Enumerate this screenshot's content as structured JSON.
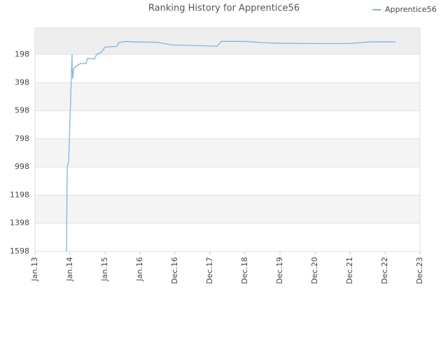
{
  "chart_data": {
    "type": "line",
    "title": "Ranking History for Apprentice56",
    "xlim": [
      0,
      11
    ],
    "xticks": [
      {
        "value": 0,
        "label": "Jan.13"
      },
      {
        "value": 1,
        "label": "Jan.14"
      },
      {
        "value": 2,
        "label": "Jan.15"
      },
      {
        "value": 3,
        "label": "Jan.16"
      },
      {
        "value": 4,
        "label": "Dec.16"
      },
      {
        "value": 5,
        "label": "Dec.17"
      },
      {
        "value": 6,
        "label": "Dec.18"
      },
      {
        "value": 7,
        "label": "Dec.19"
      },
      {
        "value": 8,
        "label": "Dec.20"
      },
      {
        "value": 9,
        "label": "Dec.21"
      },
      {
        "value": 10,
        "label": "Dec.22"
      },
      {
        "value": 11,
        "label": "Dec.23"
      }
    ],
    "ylim": [
      1598,
      9
    ],
    "yticks": [
      198,
      398,
      598,
      798,
      998,
      1198,
      1398,
      1598
    ],
    "grid": true,
    "legend": "top-right",
    "series": [
      {
        "name": "Apprentice56",
        "color": "#7cb5ec",
        "x": [
          0.9,
          0.92,
          0.96,
          0.98,
          1.0,
          1.02,
          1.04,
          1.06,
          1.06,
          1.08,
          1.1,
          1.2,
          1.3,
          1.46,
          1.5,
          1.7,
          1.76,
          1.9,
          2.0,
          2.34,
          2.4,
          2.6,
          2.8,
          3.5,
          3.9,
          4.7,
          5.2,
          5.32,
          6.0,
          6.6,
          7.0,
          8.0,
          9.0,
          9.2,
          9.6,
          10.3
        ],
        "values": [
          1598,
          1000,
          960,
          820,
          650,
          500,
          330,
          198,
          290,
          370,
          300,
          278,
          262,
          262,
          225,
          230,
          198,
          180,
          145,
          140,
          112,
          105,
          108,
          111,
          130,
          135,
          140,
          105,
          105,
          115,
          118,
          120,
          120,
          115,
          108,
          108
        ]
      }
    ]
  }
}
